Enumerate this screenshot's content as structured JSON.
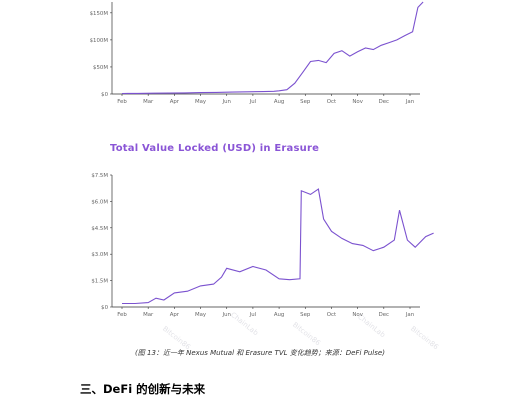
{
  "document": {
    "chart2_title": "Total Value Locked (USD) in Erasure",
    "caption": "(图 13：近一年 Nexus Mutual 和 Erasure TVL 变化趋势；来源：DeFi Pulse)",
    "section_heading": "三、DeFi 的创新与未来",
    "watermarks": [
      "Bitcoin86",
      "ChainLab",
      "Bitcoin86",
      "ChainLab",
      "Bitcoin86"
    ]
  },
  "colors": {
    "line": "#7b52cf",
    "title": "#8a55d6",
    "axis": "#333333",
    "grid": "#e6e6e6"
  },
  "chart_data": [
    {
      "type": "line",
      "title": "",
      "xlabel": "",
      "ylabel": "",
      "x_ticks": [
        "Feb",
        "Mar",
        "Apr",
        "May",
        "Jun",
        "Jul",
        "Aug",
        "Sep",
        "Oct",
        "Nov",
        "Dec",
        "Jan"
      ],
      "y_ticks": [
        "$0",
        "$50M",
        "$100M",
        "$150M"
      ],
      "ylim": [
        0,
        170
      ],
      "grid": false,
      "x": [
        0,
        0.6,
        1.2,
        1.8,
        2.4,
        3.0,
        3.6,
        4.2,
        4.8,
        5.4,
        5.8,
        6.0,
        6.3,
        6.6,
        6.9,
        7.2,
        7.5,
        7.8,
        8.1,
        8.4,
        8.7,
        9.0,
        9.3,
        9.6,
        9.9,
        10.2,
        10.5,
        10.8,
        11.1,
        11.3,
        11.5
      ],
      "values": [
        1,
        1.2,
        1.4,
        1.6,
        2,
        2.5,
        3,
        3.5,
        4,
        4.5,
        5,
        6,
        8,
        20,
        40,
        60,
        62,
        58,
        75,
        80,
        70,
        78,
        85,
        82,
        90,
        95,
        100,
        108,
        115,
        160,
        175
      ]
    },
    {
      "type": "line",
      "title": "Total Value Locked (USD) in Erasure",
      "xlabel": "",
      "ylabel": "",
      "x_ticks": [
        "Feb",
        "Mar",
        "Apr",
        "May",
        "Jun",
        "Jul",
        "Aug",
        "Sep",
        "Oct",
        "Nov",
        "Dec",
        "Jan"
      ],
      "y_ticks": [
        "$0",
        "$1.5M",
        "$3.0M",
        "$4.5M",
        "$6.0M",
        "$7.5M"
      ],
      "ylim": [
        0,
        7.5
      ],
      "grid": false,
      "x": [
        0,
        0.5,
        1.0,
        1.3,
        1.6,
        2.0,
        2.5,
        3.0,
        3.5,
        3.8,
        4.0,
        4.5,
        5.0,
        5.5,
        6.0,
        6.4,
        6.8,
        6.85,
        7.2,
        7.5,
        7.7,
        8.0,
        8.4,
        8.8,
        9.2,
        9.6,
        10.0,
        10.4,
        10.6,
        10.9,
        11.2,
        11.6,
        11.9
      ],
      "values": [
        0.2,
        0.2,
        0.25,
        0.5,
        0.4,
        0.8,
        0.9,
        1.2,
        1.3,
        1.7,
        2.2,
        2.0,
        2.3,
        2.1,
        1.6,
        1.55,
        1.6,
        6.6,
        6.4,
        6.7,
        5.0,
        4.3,
        3.9,
        3.6,
        3.5,
        3.2,
        3.4,
        3.8,
        5.5,
        3.8,
        3.4,
        4.0,
        4.2
      ]
    }
  ]
}
